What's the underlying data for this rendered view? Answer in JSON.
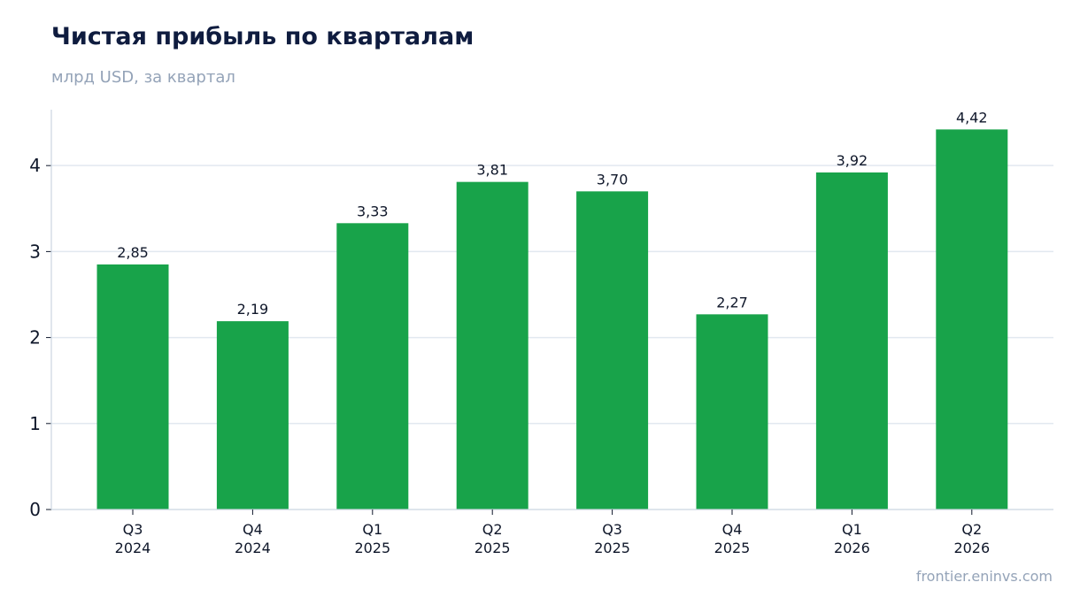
{
  "title": "Чистая прибыль по кварталам",
  "subtitle": "млрд USD, за квартал",
  "source": "frontier.eninvs.com",
  "chart_data": {
    "type": "bar",
    "categories": [
      [
        "Q3",
        "2024"
      ],
      [
        "Q4",
        "2024"
      ],
      [
        "Q1",
        "2025"
      ],
      [
        "Q2",
        "2025"
      ],
      [
        "Q3",
        "2025"
      ],
      [
        "Q4",
        "2025"
      ],
      [
        "Q1",
        "2026"
      ],
      [
        "Q2",
        "2026"
      ]
    ],
    "values": [
      2.85,
      2.19,
      3.33,
      3.81,
      3.7,
      2.27,
      3.92,
      4.42
    ],
    "data_labels": [
      "2,85",
      "2,19",
      "3,33",
      "3,81",
      "3,70",
      "2,27",
      "3,92",
      "4,42"
    ],
    "yticks": [
      0,
      1,
      2,
      3,
      4
    ],
    "ylim": [
      0,
      4.65
    ],
    "grid": true,
    "bar_color": "#18a34a",
    "grid_color": "#e2e8f0",
    "axis_color": "#cbd5e1"
  }
}
